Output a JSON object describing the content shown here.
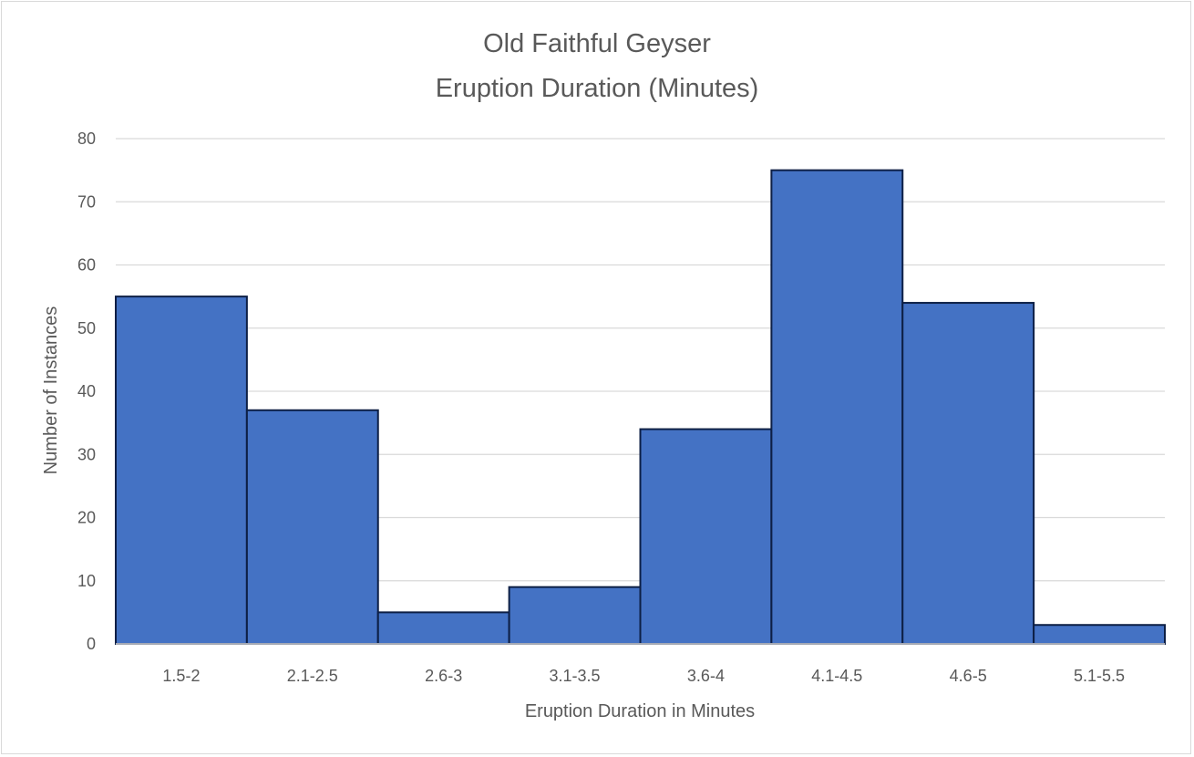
{
  "chart_data": {
    "type": "bar",
    "title_line1": "Old Faithful Geyser",
    "title_line2": "Eruption Duration (Minutes)",
    "xlabel": "Eruption Duration in Minutes",
    "ylabel": "Number of Instances",
    "categories": [
      "1.5-2",
      "2.1-2.5",
      "2.6-3",
      "3.1-3.5",
      "3.6-4",
      "4.1-4.5",
      "4.6-5",
      "5.1-5.5"
    ],
    "values": [
      55,
      37,
      5,
      9,
      34,
      75,
      54,
      3
    ],
    "ylim": [
      0,
      80
    ],
    "yticks": [
      0,
      10,
      20,
      30,
      40,
      50,
      60,
      70,
      80
    ],
    "grid": true,
    "legend": "none",
    "bar_color": "#4472c4",
    "bar_edge_color": "#0d1f45",
    "grid_color": "#d9d9d9"
  }
}
